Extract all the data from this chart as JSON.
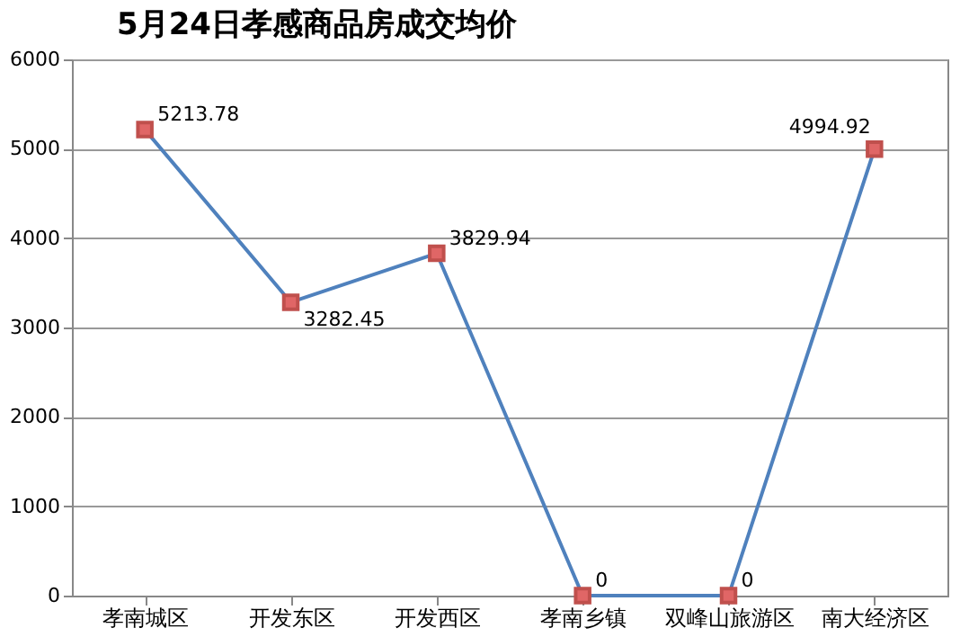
{
  "chart_data": {
    "type": "line",
    "title": "5月24日孝感商品房成交均价",
    "categories": [
      "孝南城区",
      "开发东区",
      "开发西区",
      "孝南乡镇",
      "双峰山旅游区",
      "南大经济区"
    ],
    "series": [
      {
        "color": "#4f81bd",
        "values": [
          5213.78,
          3282.45,
          3829.94,
          0,
          0,
          4994.92
        ]
      }
    ],
    "ylim": [
      0,
      6000
    ],
    "yticks": [
      0,
      1000,
      2000,
      3000,
      4000,
      5000,
      6000
    ],
    "grid": "y",
    "marker": "square",
    "data_labels": true,
    "line_style": "solid"
  }
}
